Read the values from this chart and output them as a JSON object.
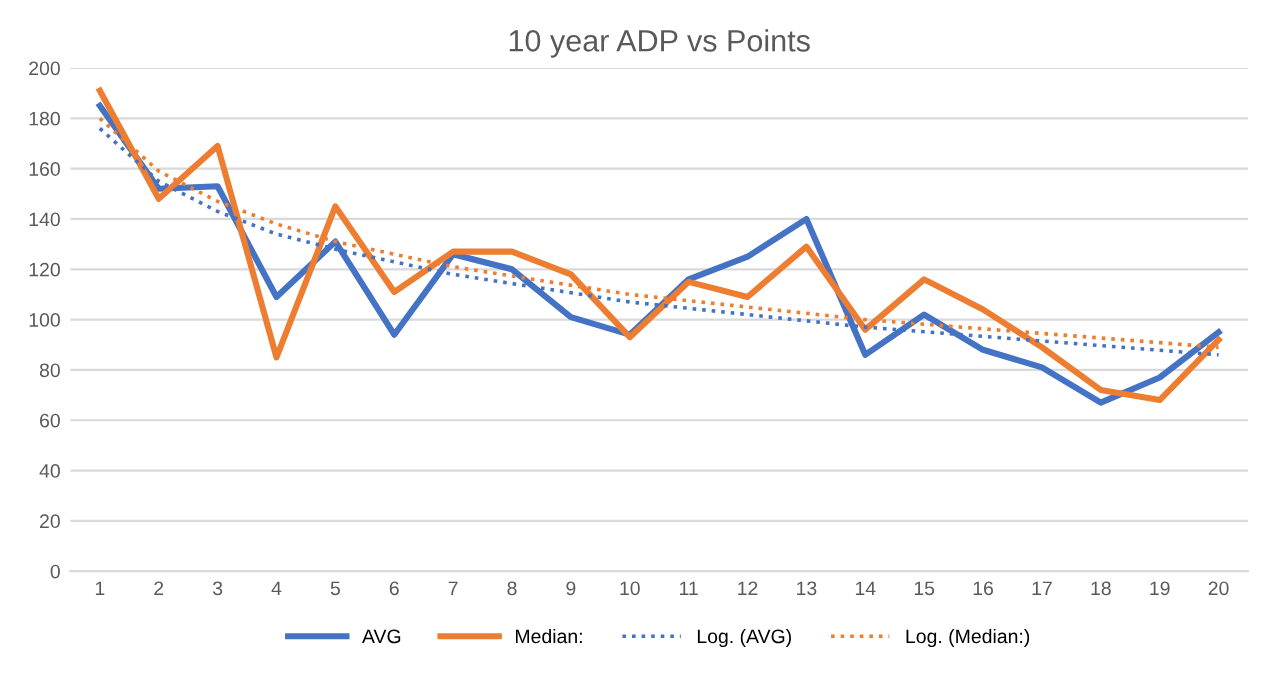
{
  "chart_data": {
    "type": "line",
    "title": "10 year ADP vs Points",
    "x": [
      1,
      2,
      3,
      4,
      5,
      6,
      7,
      8,
      9,
      10,
      11,
      12,
      13,
      14,
      15,
      16,
      17,
      18,
      19,
      20
    ],
    "xlim": [
      0.5,
      20.5
    ],
    "xticks": [
      1,
      2,
      3,
      4,
      5,
      6,
      7,
      8,
      9,
      10,
      11,
      12,
      13,
      14,
      15,
      16,
      17,
      18,
      19,
      20
    ],
    "ylim": [
      0,
      200
    ],
    "yticks": [
      0,
      20,
      40,
      60,
      80,
      100,
      120,
      140,
      160,
      180,
      200
    ],
    "grid": "y",
    "legend": "bottom",
    "marker": "none",
    "series": [
      {
        "name": "AVG",
        "color": "#4472c4",
        "line_style": "solid",
        "values": [
          185,
          152,
          153,
          109,
          131,
          94,
          126,
          120,
          101,
          94,
          116,
          125,
          140,
          86,
          102,
          88,
          81,
          67,
          77,
          95
        ]
      },
      {
        "name": "Median:",
        "color": "#ed7d31",
        "line_style": "solid",
        "values": [
          191,
          148,
          169,
          85,
          145,
          111,
          127,
          127,
          118,
          93,
          115,
          109,
          129,
          96,
          116,
          104,
          89,
          72,
          68,
          92
        ]
      },
      {
        "name": "Log. (AVG)",
        "color": "#4472c4",
        "line_style": "dotted",
        "x": [
          1,
          2,
          3,
          4,
          5,
          7,
          10,
          14,
          20
        ],
        "values": [
          176,
          155,
          143,
          134,
          128,
          118,
          107,
          97,
          86
        ]
      },
      {
        "name": "Log. (Median:)",
        "color": "#ed7d31",
        "line_style": "dotted",
        "x": [
          1,
          2,
          3,
          4,
          5,
          7,
          10,
          14,
          20
        ],
        "values": [
          180,
          159,
          147,
          138,
          131,
          121,
          110,
          100,
          89
        ]
      }
    ]
  }
}
